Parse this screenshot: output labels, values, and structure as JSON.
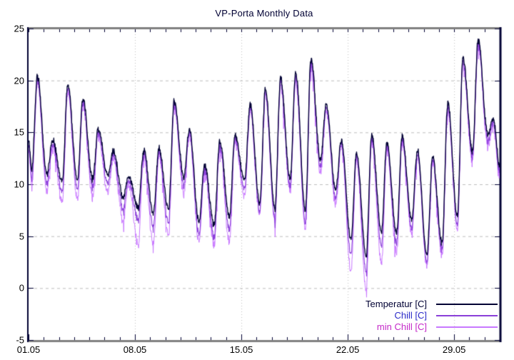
{
  "chart_data": {
    "type": "line",
    "title": "VP-Porta Monthly Data",
    "xlabel": "",
    "ylabel": "",
    "ylim": [
      -5,
      25
    ],
    "y_ticks": [
      -5,
      0,
      5,
      10,
      15,
      20,
      25
    ],
    "x_axis_days_range": [
      0,
      31
    ],
    "x_major_ticks": [
      {
        "label": "01.05",
        "t": 0
      },
      {
        "label": "08.05",
        "t": 7
      },
      {
        "label": "15.05",
        "t": 14
      },
      {
        "label": "22.05",
        "t": 21
      },
      {
        "label": "29.05",
        "t": 28
      }
    ],
    "x_minor_tick_every_days": 1,
    "grid": {
      "h_dashed_values": [
        0,
        5,
        10,
        15,
        20
      ],
      "v_dotted_days": [
        7,
        14,
        21,
        28
      ],
      "grid_color": "#bdbdbd"
    },
    "frame": {
      "side_border_color": "#000033",
      "top_bottom_border_color": "#808080",
      "tick_color": "#000033",
      "tick_label_color": "#000000",
      "title_color": "#000033"
    },
    "legend_position": "inside-bottom-right",
    "series": [
      {
        "name": "Temperatur [C]",
        "line_color": "#000033",
        "label_color": "#000033",
        "unit": "C",
        "start_value": 14.2,
        "end_value": 11.7,
        "days": [
          1,
          2,
          3,
          4,
          5,
          6,
          7,
          8,
          9,
          10,
          11,
          12,
          13,
          14,
          15,
          16,
          17,
          18,
          19,
          20,
          21,
          22,
          23,
          24,
          25,
          26,
          27,
          28,
          29,
          30,
          31
        ],
        "daily_max": [
          20.4,
          14.3,
          19.6,
          18.3,
          15.3,
          13.2,
          10.8,
          13.3,
          13.5,
          18.0,
          15.3,
          11.9,
          14.2,
          14.7,
          17.7,
          19.2,
          20.2,
          20.8,
          22.2,
          17.7,
          14.2,
          13.1,
          14.8,
          14.1,
          14.6,
          13.3,
          12.6,
          17.9,
          22.2,
          23.9,
          16.3
        ],
        "daily_min": [
          11.5,
          11.0,
          10.3,
          10.4,
          10.5,
          10.9,
          8.8,
          7.7,
          7.2,
          7.7,
          10.8,
          6.4,
          6.1,
          6.9,
          10.4,
          8.2,
          7.7,
          10.6,
          7.5,
          12.4,
          9.5,
          4.7,
          3.2,
          5.4,
          5.3,
          6.6,
          3.2,
          4.3,
          7.0,
          13.2,
          14.9
        ]
      },
      {
        "name": "Chill [C]",
        "line_color": "#8a3fd8",
        "label_color": "#2a2ac8",
        "unit": "C",
        "start_value": 13.9,
        "end_value": 11.3,
        "days": [
          1,
          2,
          3,
          4,
          5,
          6,
          7,
          8,
          9,
          10,
          11,
          12,
          13,
          14,
          15,
          16,
          17,
          18,
          19,
          20,
          21,
          22,
          23,
          24,
          25,
          26,
          27,
          28,
          29,
          30,
          31
        ],
        "daily_max": [
          20.2,
          14.1,
          19.4,
          18.1,
          15.1,
          13.0,
          10.6,
          13.1,
          13.3,
          17.8,
          15.1,
          11.7,
          14.0,
          14.5,
          17.5,
          19.0,
          20.0,
          20.6,
          22.0,
          17.5,
          14.0,
          12.9,
          14.6,
          13.9,
          14.4,
          13.1,
          12.4,
          17.7,
          22.0,
          23.7,
          16.1
        ],
        "daily_min": [
          10.8,
          10.2,
          9.4,
          9.6,
          9.8,
          10.2,
          7.8,
          6.6,
          6.0,
          6.5,
          10.2,
          5.3,
          5.0,
          5.8,
          9.7,
          7.5,
          6.9,
          10.0,
          6.5,
          11.9,
          8.8,
          3.4,
          1.8,
          4.2,
          4.4,
          5.9,
          2.6,
          3.8,
          6.3,
          12.8,
          14.4
        ]
      },
      {
        "name": "min Chill [C]",
        "line_color": "#c878ff",
        "label_color": "#c428c8",
        "unit": "C",
        "start_value": 13.6,
        "end_value": 10.9,
        "days": [
          1,
          2,
          3,
          4,
          5,
          6,
          7,
          8,
          9,
          10,
          11,
          12,
          13,
          14,
          15,
          16,
          17,
          18,
          19,
          20,
          21,
          22,
          23,
          24,
          25,
          26,
          27,
          28,
          29,
          30,
          31
        ],
        "daily_max": [
          20.0,
          13.9,
          19.2,
          17.9,
          14.9,
          12.8,
          10.4,
          12.9,
          13.1,
          17.6,
          14.9,
          11.5,
          13.8,
          14.3,
          17.3,
          18.8,
          19.8,
          20.4,
          21.8,
          17.3,
          13.8,
          12.7,
          14.4,
          13.7,
          14.2,
          12.9,
          12.2,
          17.5,
          21.8,
          23.5,
          15.9
        ],
        "daily_min": [
          10.2,
          9.6,
          8.6,
          8.8,
          9.0,
          9.5,
          6.8,
          4.3,
          4.5,
          5.5,
          9.6,
          4.8,
          4.5,
          4.8,
          9.2,
          7.4,
          6.8,
          9.8,
          6.2,
          11.5,
          8.4,
          1.9,
          0.2,
          2.7,
          3.7,
          5.6,
          2.4,
          3.5,
          6.0,
          12.5,
          14.1
        ]
      }
    ]
  }
}
